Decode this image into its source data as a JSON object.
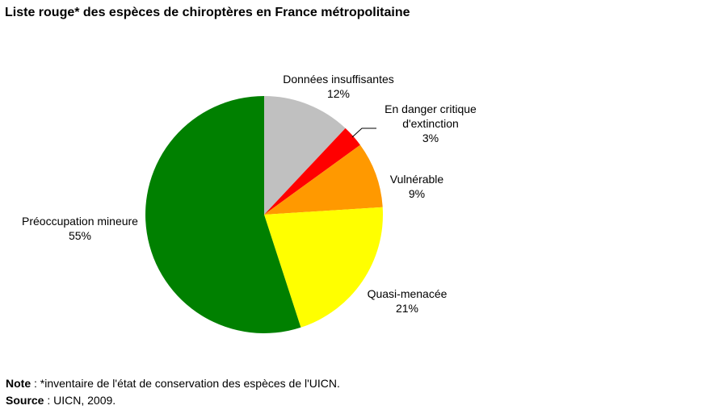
{
  "title": "Liste rouge* des espèces de chiroptères en France métropolitaine",
  "chart_data": {
    "type": "pie",
    "title": "Liste rouge* des espèces de chiroptères en France métropolitaine",
    "slices": [
      {
        "label": [
          "Données insuffisantes"
        ],
        "value": 12,
        "display": "12%",
        "color": "#C0C0C0"
      },
      {
        "label": [
          "En danger critique",
          "d'extinction"
        ],
        "value": 3,
        "display": "3%",
        "color": "#FF0000"
      },
      {
        "label": [
          "Vulnérable"
        ],
        "value": 9,
        "display": "9%",
        "color": "#FF9900"
      },
      {
        "label": [
          "Quasi-menacée"
        ],
        "value": 21,
        "display": "21%",
        "color": "#FFFF00"
      },
      {
        "label": [
          "Préoccupation mineure"
        ],
        "value": 55,
        "display": "55%",
        "color": "#008000"
      }
    ]
  },
  "footer": {
    "note_label": "Note",
    "note_text": " : *inventaire de l'état de conservation des espèces de l'UICN.",
    "source_label": "Source",
    "source_text": " : UICN, 2009."
  }
}
